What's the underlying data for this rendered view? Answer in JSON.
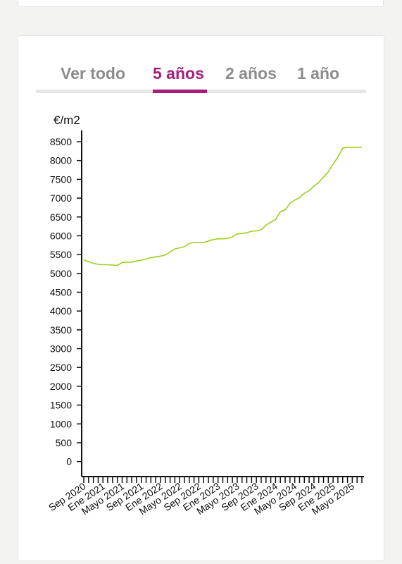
{
  "tabs": [
    {
      "label": "Ver todo",
      "active": false
    },
    {
      "label": "5 años",
      "active": true
    },
    {
      "label": "2 años",
      "active": false
    },
    {
      "label": "1 año",
      "active": false
    }
  ],
  "colors": {
    "accent": "#a51f7a",
    "tab_inactive": "#8c8c8c",
    "line": "#9dce1e",
    "axis": "#111111"
  },
  "chart_data": {
    "type": "line",
    "ylabel": "€/m2",
    "ylim": [
      -400,
      8800
    ],
    "yticks": [
      0,
      500,
      1000,
      1500,
      2000,
      2500,
      3000,
      3500,
      4000,
      4500,
      5000,
      5500,
      6000,
      6500,
      7000,
      7500,
      8000,
      8500
    ],
    "x_tick_labels": [
      "Sep 2020",
      "Ene 2021",
      "Mayo 2021",
      "Sep 2021",
      "Ene 2022",
      "Mayo 2022",
      "Sep 2022",
      "Ene 2023",
      "Mayo 2023",
      "Sep 2023",
      "Ene 2024",
      "Mayo 2024",
      "Sep 2024",
      "Ene 2025",
      "Mayo 2025"
    ],
    "x_tick_label_every": 4,
    "grid": false,
    "legend": "none",
    "x": [
      "Sep 2020",
      "Oct 2020",
      "Nov 2020",
      "Dic 2020",
      "Ene 2021",
      "Feb 2021",
      "Mar 2021",
      "Abr 2021",
      "Mayo 2021",
      "Jun 2021",
      "Jul 2021",
      "Ago 2021",
      "Sep 2021",
      "Oct 2021",
      "Nov 2021",
      "Dic 2021",
      "Ene 2022",
      "Feb 2022",
      "Mar 2022",
      "Abr 2022",
      "Mayo 2022",
      "Jun 2022",
      "Jul 2022",
      "Ago 2022",
      "Sep 2022",
      "Oct 2022",
      "Nov 2022",
      "Dic 2022",
      "Ene 2023",
      "Feb 2023",
      "Mar 2023",
      "Abr 2023",
      "Mayo 2023",
      "Jun 2023",
      "Jul 2023",
      "Ago 2023",
      "Sep 2023",
      "Oct 2023",
      "Nov 2023",
      "Dic 2023",
      "Ene 2024",
      "Feb 2024",
      "Mar 2024",
      "Abr 2024",
      "Mayo 2024",
      "Jun 2024",
      "Jul 2024",
      "Ago 2024",
      "Sep 2024",
      "Oct 2024",
      "Nov 2024",
      "Dic 2024",
      "Ene 2025",
      "Feb 2025",
      "Mar 2025",
      "Abr 2025",
      "Mayo 2025",
      "Jun 2025",
      "Jul 2025"
    ],
    "series": [
      {
        "values": [
          5360,
          5310,
          5270,
          5240,
          5230,
          5230,
          5220,
          5210,
          5290,
          5300,
          5300,
          5330,
          5350,
          5380,
          5420,
          5440,
          5460,
          5490,
          5570,
          5650,
          5680,
          5710,
          5800,
          5820,
          5820,
          5820,
          5860,
          5900,
          5920,
          5920,
          5930,
          5970,
          6050,
          6060,
          6080,
          6120,
          6130,
          6160,
          6280,
          6360,
          6430,
          6640,
          6690,
          6860,
          6950,
          7010,
          7130,
          7200,
          7320,
          7420,
          7560,
          7700,
          7900,
          8090,
          8330,
          8350,
          8350,
          8350,
          8350
        ]
      }
    ]
  }
}
